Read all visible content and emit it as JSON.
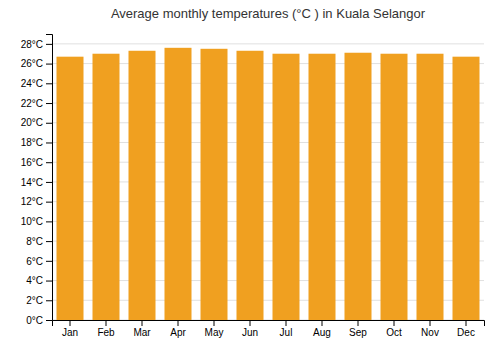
{
  "chart_data": {
    "type": "bar",
    "title": "Average monthly temperatures (°C ) in Kuala Selangor",
    "categories": [
      "Jan",
      "Feb",
      "Mar",
      "Apr",
      "May",
      "Jun",
      "Jul",
      "Aug",
      "Sep",
      "Oct",
      "Nov",
      "Dec"
    ],
    "values": [
      26.7,
      27.0,
      27.3,
      27.6,
      27.5,
      27.3,
      27.0,
      27.0,
      27.1,
      27.0,
      27.0,
      26.7
    ],
    "color": "#F0A020",
    "ylim": [
      0,
      29
    ],
    "yticks": [
      {
        "value": 0,
        "label": "0°C"
      },
      {
        "value": 2,
        "label": "2°C"
      },
      {
        "value": 4,
        "label": "4°C"
      },
      {
        "value": 6,
        "label": "6°C"
      },
      {
        "value": 8,
        "label": "8°C"
      },
      {
        "value": 10,
        "label": "10°C"
      },
      {
        "value": 12,
        "label": "12°C"
      },
      {
        "value": 14,
        "label": "14°C"
      },
      {
        "value": 16,
        "label": "16°C"
      },
      {
        "value": 18,
        "label": "18°C"
      },
      {
        "value": 20,
        "label": "20°C"
      },
      {
        "value": 22,
        "label": "22°C"
      },
      {
        "value": 24,
        "label": "24°C"
      },
      {
        "value": 26,
        "label": "26°C"
      },
      {
        "value": 28,
        "label": "28°C"
      }
    ],
    "grid": true
  }
}
